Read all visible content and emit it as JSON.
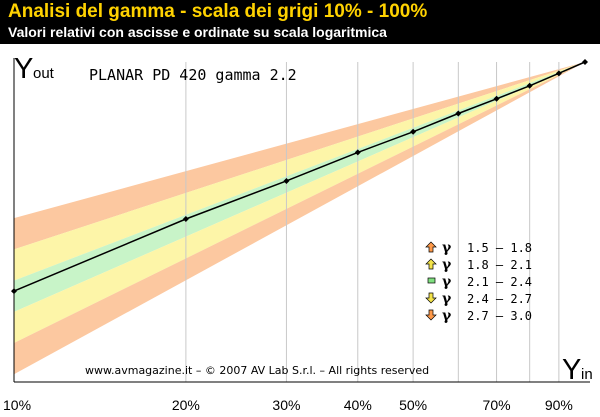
{
  "header": {
    "title": "Analisi del gamma - scala dei grigi 10% - 100%",
    "subtitle": "Valori relativi con ascisse e ordinate su scala logaritmica"
  },
  "chart_data": {
    "type": "line",
    "title": "PLANAR PD 420 gamma 2.2",
    "ylabel_main": "Y",
    "ylabel_sub": "out",
    "xlabel_main": "Y",
    "xlabel_sub": "in",
    "x_scale": "log",
    "y_scale": "log",
    "xlim": [
      0.1,
      1.0
    ],
    "x_tick_labels": [
      "10%",
      "20%",
      "30%",
      "40%",
      "50%",
      "70%",
      "90%"
    ],
    "x_tick_values": [
      0.1,
      0.2,
      0.3,
      0.4,
      0.5,
      0.7,
      0.9
    ],
    "x_grid_values": [
      0.2,
      0.3,
      0.4,
      0.5,
      0.6,
      0.7,
      0.8,
      0.9
    ],
    "grid": "vertical",
    "series": [
      {
        "x": [
          0.1,
          0.2,
          0.3,
          0.4,
          0.5,
          0.6,
          0.7,
          0.8,
          0.9,
          1.0
        ],
        "y": [
          0.0063,
          0.031,
          0.072,
          0.1355,
          0.2137,
          0.32,
          0.4432,
          0.591,
          0.7784,
          1.0
        ],
        "color": "#000000"
      }
    ],
    "bands": [
      {
        "gamma": [
          1.5,
          1.8
        ],
        "color": "#fcc8a0"
      },
      {
        "gamma": [
          1.8,
          2.1
        ],
        "color": "#fdf5a8"
      },
      {
        "gamma": [
          2.1,
          2.4
        ],
        "color": "#c8f4c8"
      },
      {
        "gamma": [
          2.4,
          2.7
        ],
        "color": "#fdf5a8"
      },
      {
        "gamma": [
          2.7,
          3.0
        ],
        "color": "#fcc8a0"
      }
    ],
    "legend": {
      "placement": "right",
      "symbol": "γ",
      "items": [
        {
          "icon": "arrow-up-icon",
          "range": "1.5 – 1.8",
          "color": "#ff9a4a"
        },
        {
          "icon": "arrow-up-icon",
          "range": "1.8 – 2.1",
          "color": "#f3e34a"
        },
        {
          "icon": "square-icon",
          "range": "2.1 – 2.4",
          "color": "#80e080"
        },
        {
          "icon": "arrow-down-icon",
          "range": "2.4 – 2.7",
          "color": "#f3e34a"
        },
        {
          "icon": "arrow-down-icon",
          "range": "2.7 – 3.0",
          "color": "#ff9a4a"
        }
      ]
    },
    "credit": "www.avmagazine.it – © 2007 AV Lab S.r.l. – All rights reserved"
  }
}
